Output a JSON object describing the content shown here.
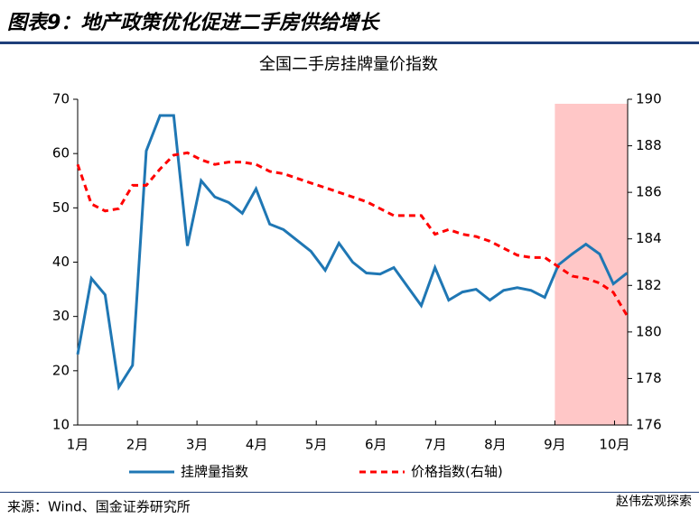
{
  "chart_data": {
    "type": "line",
    "header": "图表9：地产政策优化促进二手房供给增长",
    "title": "全国二手房挂牌量价指数",
    "source": "来源：Wind、国金证券研究所",
    "watermark": "赵伟宏观探索",
    "x": [
      1.0,
      1.23,
      1.46,
      1.69,
      1.92,
      2.15,
      2.38,
      2.61,
      2.84,
      3.07,
      3.3,
      3.53,
      3.76,
      3.99,
      4.22,
      4.45,
      4.68,
      4.91,
      5.15,
      5.38,
      5.61,
      5.84,
      6.07,
      6.3,
      6.53,
      6.76,
      6.99,
      7.22,
      7.45,
      7.68,
      7.91,
      8.14,
      8.37,
      8.6,
      8.83,
      9.06,
      9.29,
      9.52,
      9.75,
      9.98,
      10.21
    ],
    "series": [
      {
        "name": "挂牌量指数",
        "color": "#1f77b4",
        "axis": "y",
        "dash": false,
        "values": [
          23,
          37,
          34,
          17,
          21,
          60.5,
          67,
          67,
          43,
          55,
          52,
          51,
          49,
          53.5,
          47,
          46,
          44,
          42,
          38.5,
          43.5,
          40,
          38,
          37.8,
          39,
          35.5,
          32,
          39,
          33,
          34.5,
          35,
          33,
          34.8,
          35.3,
          34.8,
          33.5,
          39.5,
          41.5,
          43.3,
          41.5,
          36,
          38
        ]
      },
      {
        "name": "价格指数(右轴)",
        "color": "#ff0000",
        "axis": "y2",
        "dash": true,
        "values": [
          187.2,
          185.5,
          185.2,
          185.3,
          186.3,
          186.3,
          187.0,
          187.6,
          187.7,
          187.4,
          187.2,
          187.3,
          187.3,
          187.2,
          186.9,
          186.8,
          186.6,
          186.4,
          186.2,
          186.0,
          185.8,
          185.6,
          185.3,
          185.0,
          185.0,
          185.0,
          184.2,
          184.4,
          184.2,
          184.1,
          183.9,
          183.6,
          183.3,
          183.2,
          183.2,
          182.8,
          182.4,
          182.3,
          182.1,
          181.7,
          180.7
        ]
      }
    ],
    "highlight": {
      "x": [
        9,
        10.22
      ],
      "color": "#ffc7c7"
    },
    "xlim": [
      1,
      10.22
    ],
    "xticks": [
      {
        "value": 1,
        "label": "1月"
      },
      {
        "value": 2,
        "label": "2月"
      },
      {
        "value": 3,
        "label": "3月"
      },
      {
        "value": 4,
        "label": "4月"
      },
      {
        "value": 5,
        "label": "5月"
      },
      {
        "value": 6,
        "label": "6月"
      },
      {
        "value": 7,
        "label": "7月"
      },
      {
        "value": 8,
        "label": "8月"
      },
      {
        "value": 9,
        "label": "9月"
      },
      {
        "value": 10,
        "label": "10月"
      }
    ],
    "ylim": [
      10,
      70
    ],
    "yticks": [
      10,
      20,
      30,
      40,
      50,
      60,
      70
    ],
    "y2lim": [
      176,
      190
    ],
    "y2ticks": [
      176,
      178,
      180,
      182,
      184,
      186,
      188,
      190
    ]
  }
}
